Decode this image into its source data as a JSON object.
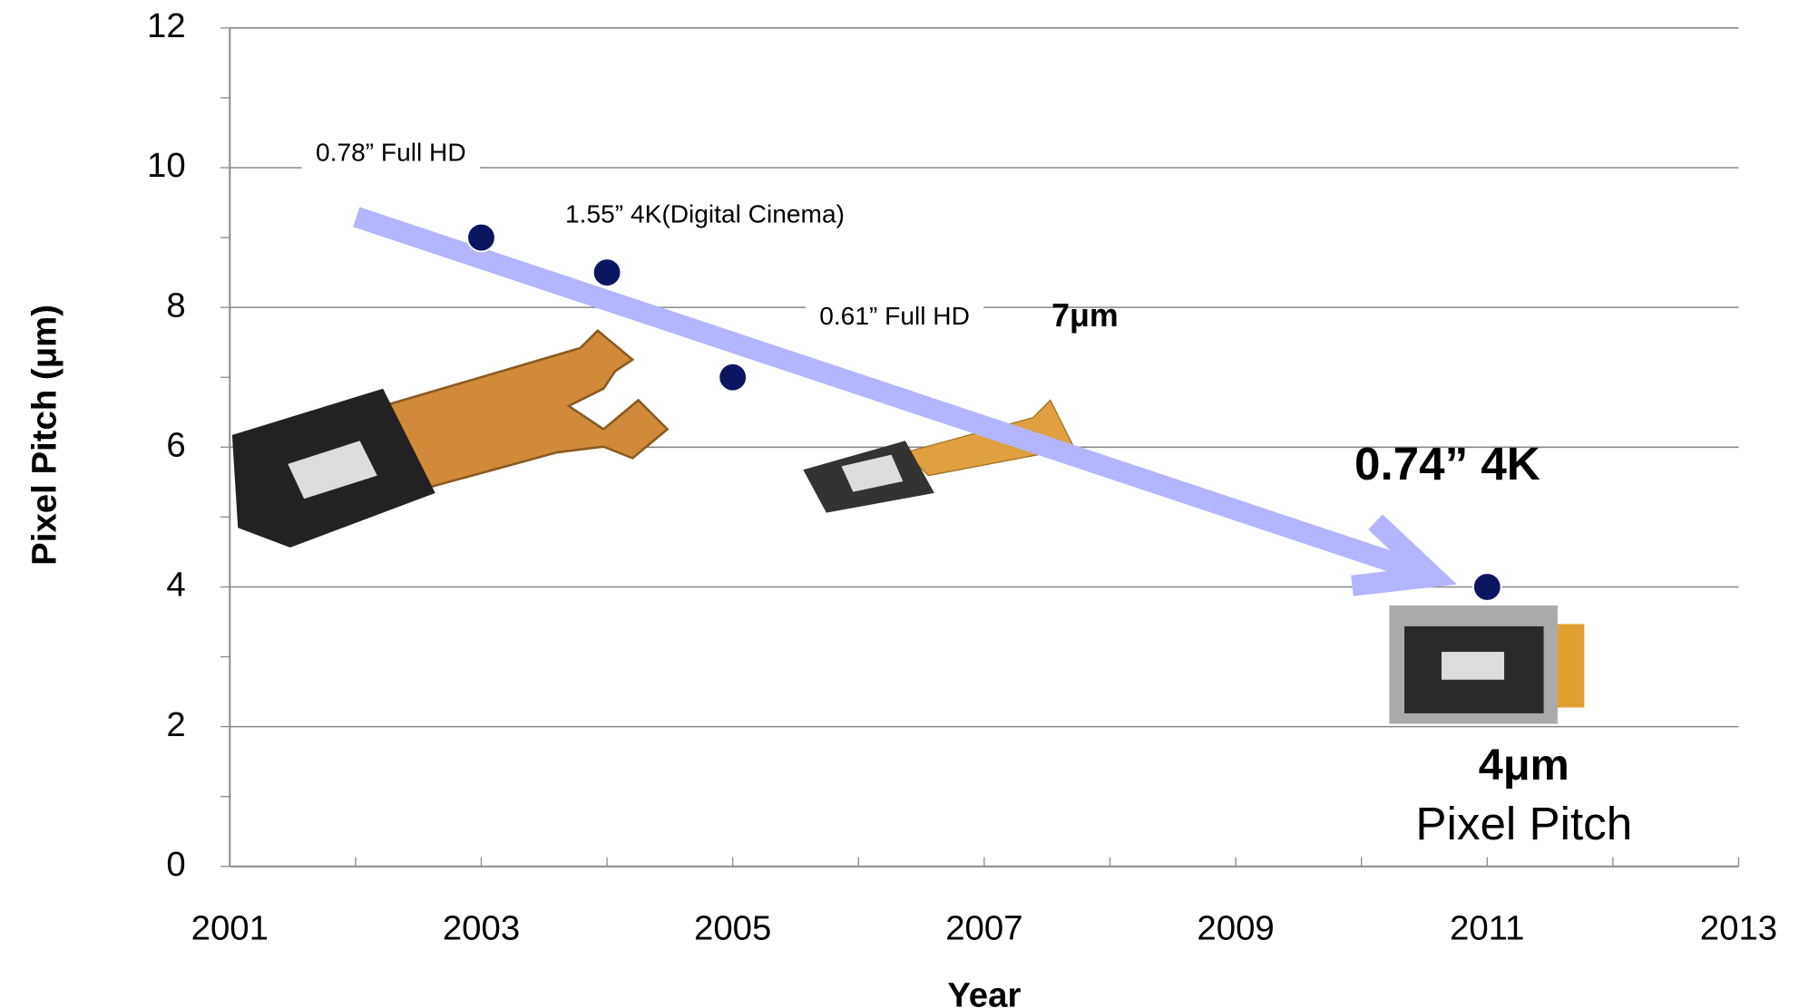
{
  "chart_data": {
    "type": "scatter",
    "x_label": "Year",
    "y_label": "Pixel Pitch (μm)",
    "x": [
      2003,
      2004,
      2005,
      2011
    ],
    "values": [
      9,
      8.5,
      7,
      4
    ],
    "color": "#0b1560",
    "xlim": [
      2001,
      2013
    ],
    "xticks": [
      2001,
      2003,
      2005,
      2007,
      2009,
      2011,
      2013
    ],
    "ylim": [
      0,
      12
    ],
    "yticks": [
      0,
      2,
      4,
      6,
      8,
      10,
      12
    ],
    "grid": true,
    "annotations": [
      "0.78” Full HD",
      "1.55” 4K(Digital Cinema)",
      "0.61” Full HD",
      "7μm",
      "0.74” 4K",
      "4μm",
      "Pixel Pitch"
    ]
  }
}
